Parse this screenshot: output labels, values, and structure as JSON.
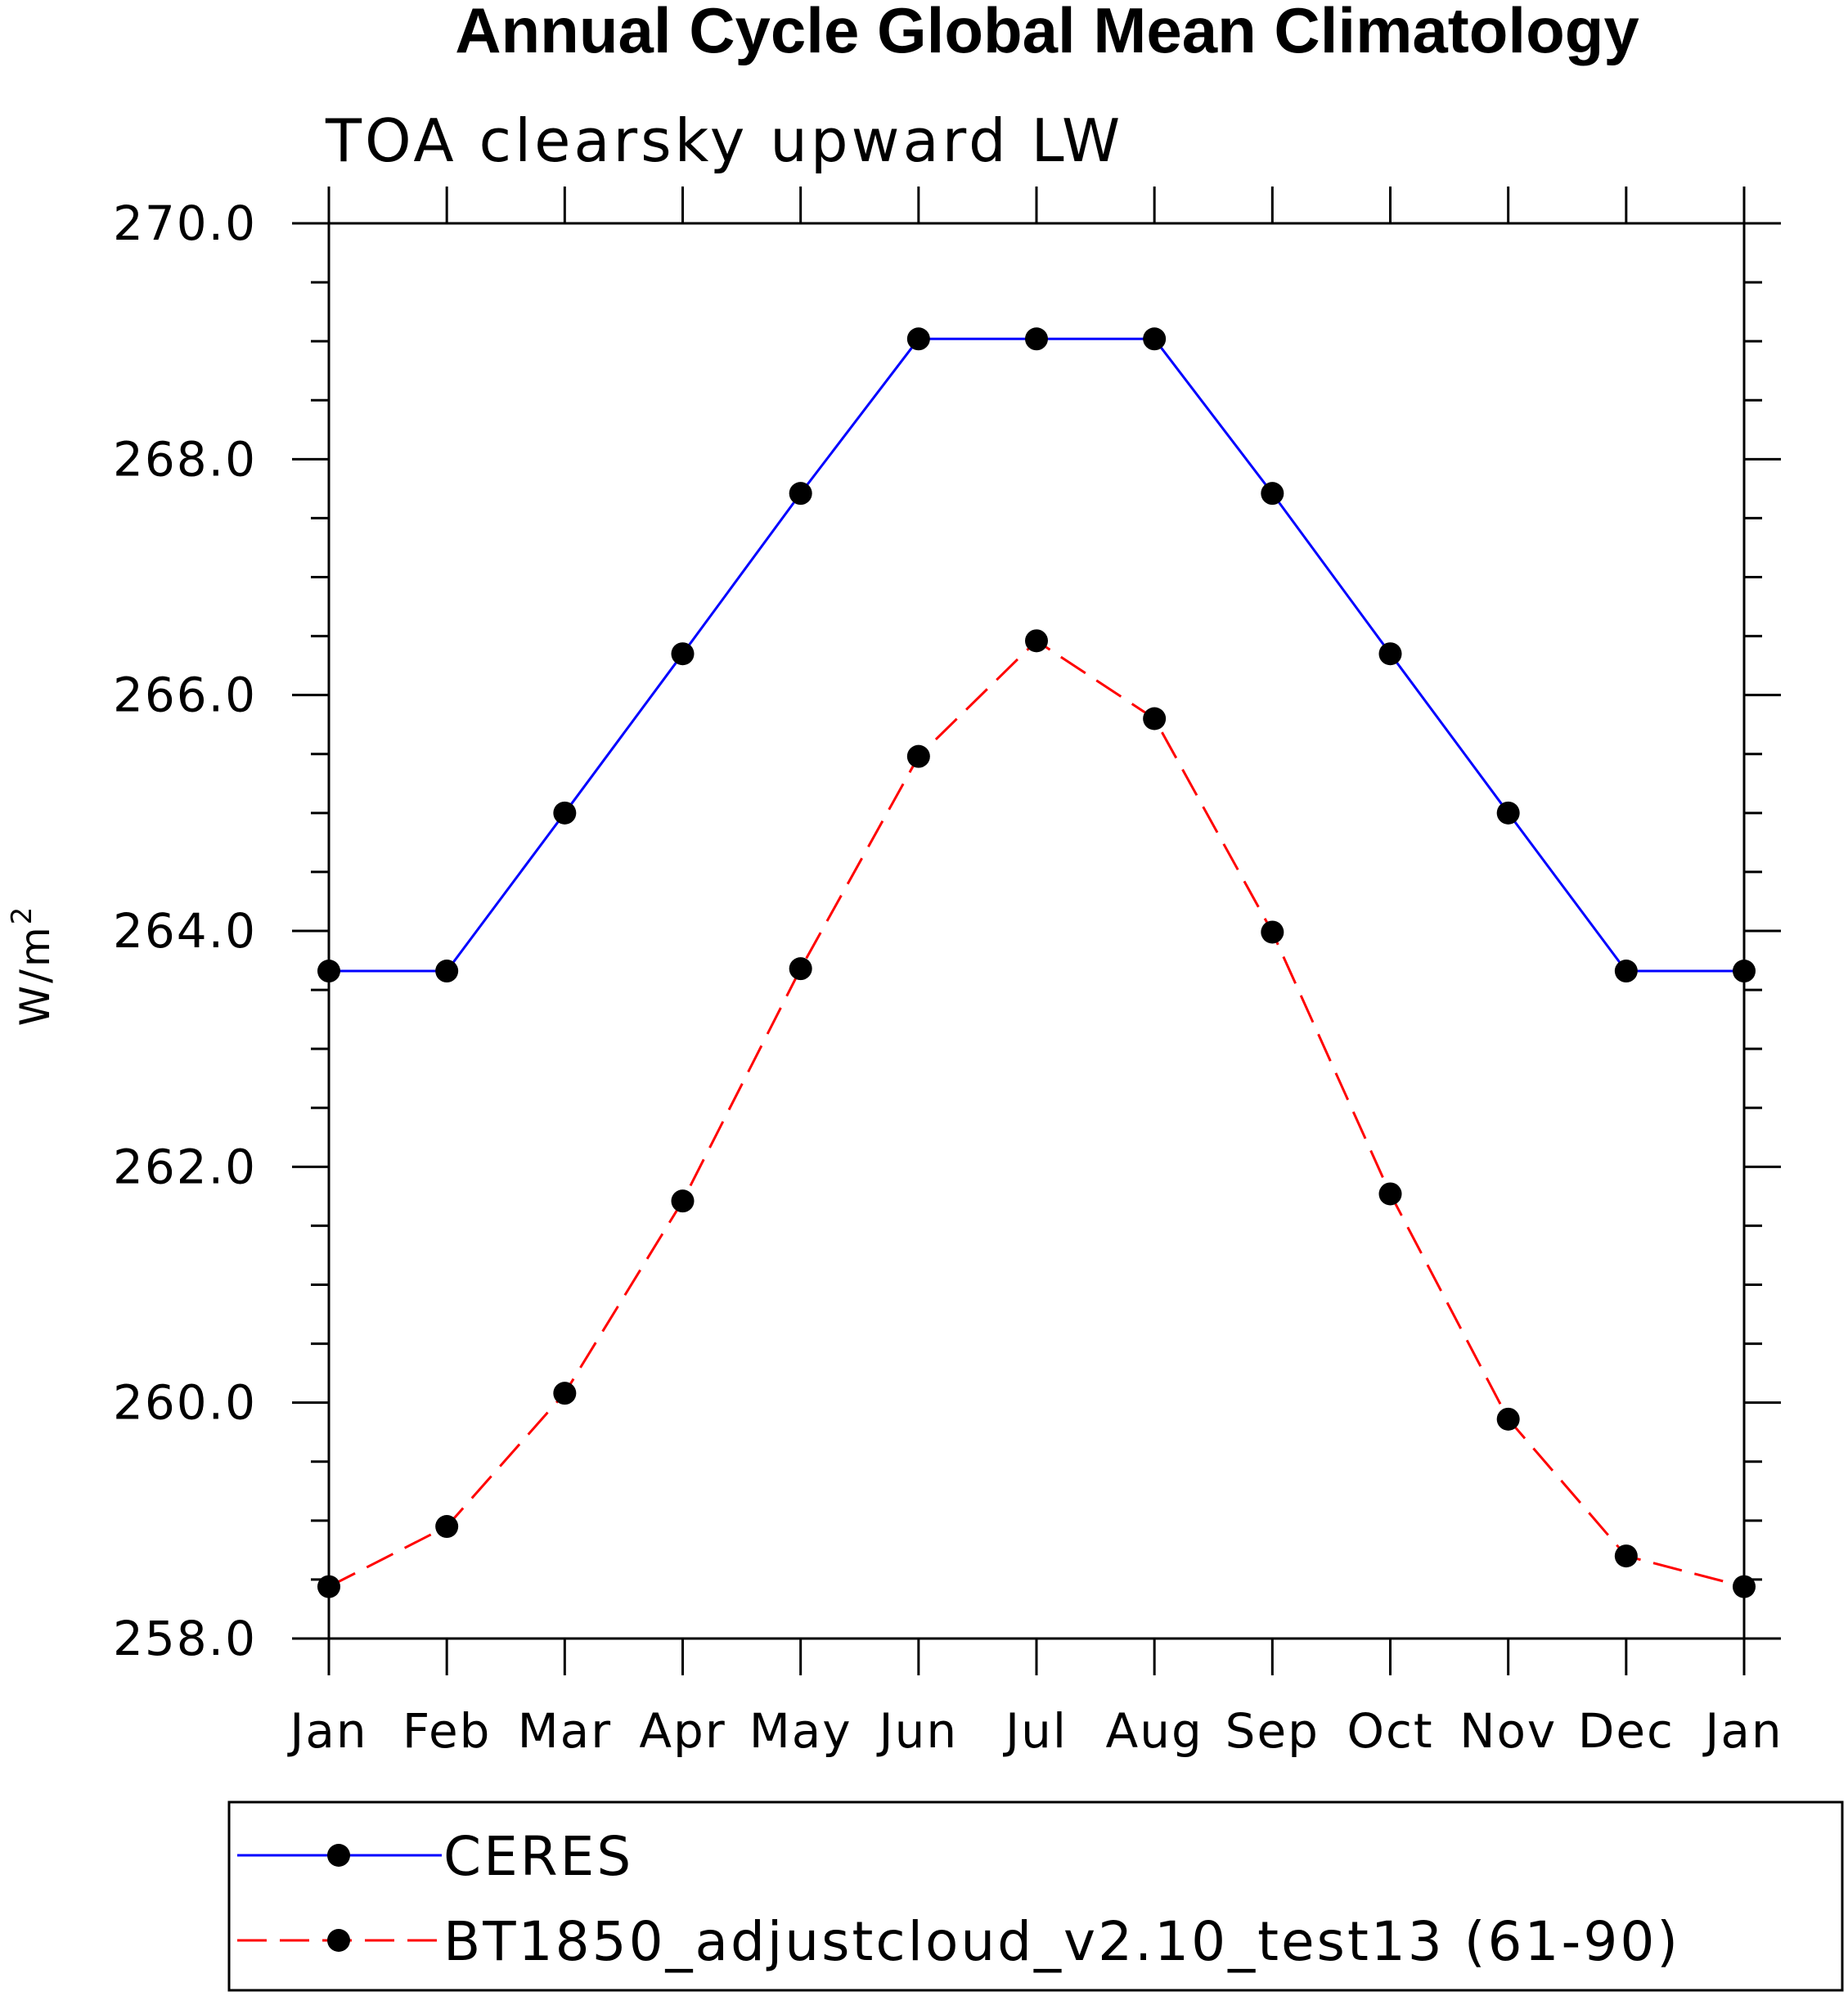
{
  "chart_data": {
    "type": "line",
    "title": "Annual Cycle Global Mean Climatology",
    "subtitle": "TOA clearsky upward LW",
    "xlabel": "",
    "ylabel": "W/m",
    "ylabel_superscript": "2",
    "categories": [
      "Jan",
      "Feb",
      "Mar",
      "Apr",
      "May",
      "Jun",
      "Jul",
      "Aug",
      "Sep",
      "Oct",
      "Nov",
      "Dec",
      "Jan"
    ],
    "ylim": [
      258.0,
      270.0
    ],
    "yticks": [
      "258.0",
      "260.0",
      "262.0",
      "264.0",
      "266.0",
      "268.0",
      "270.0"
    ],
    "grid": false,
    "legend_position": "bottom",
    "series": [
      {
        "name": "CERES",
        "color": "#0000ff",
        "dash": "solid",
        "values": [
          263.66,
          263.66,
          265.0,
          266.35,
          267.71,
          269.02,
          269.02,
          269.02,
          267.71,
          266.35,
          265.0,
          263.66,
          263.66
        ]
      },
      {
        "name": "BT1850_adjustcloud_v2.10_test13 (61-90)",
        "color": "#ff0000",
        "dash": "dashed",
        "values": [
          258.44,
          258.95,
          260.08,
          261.71,
          263.68,
          265.48,
          266.46,
          265.8,
          263.99,
          261.77,
          259.86,
          258.7,
          258.44
        ]
      }
    ]
  }
}
